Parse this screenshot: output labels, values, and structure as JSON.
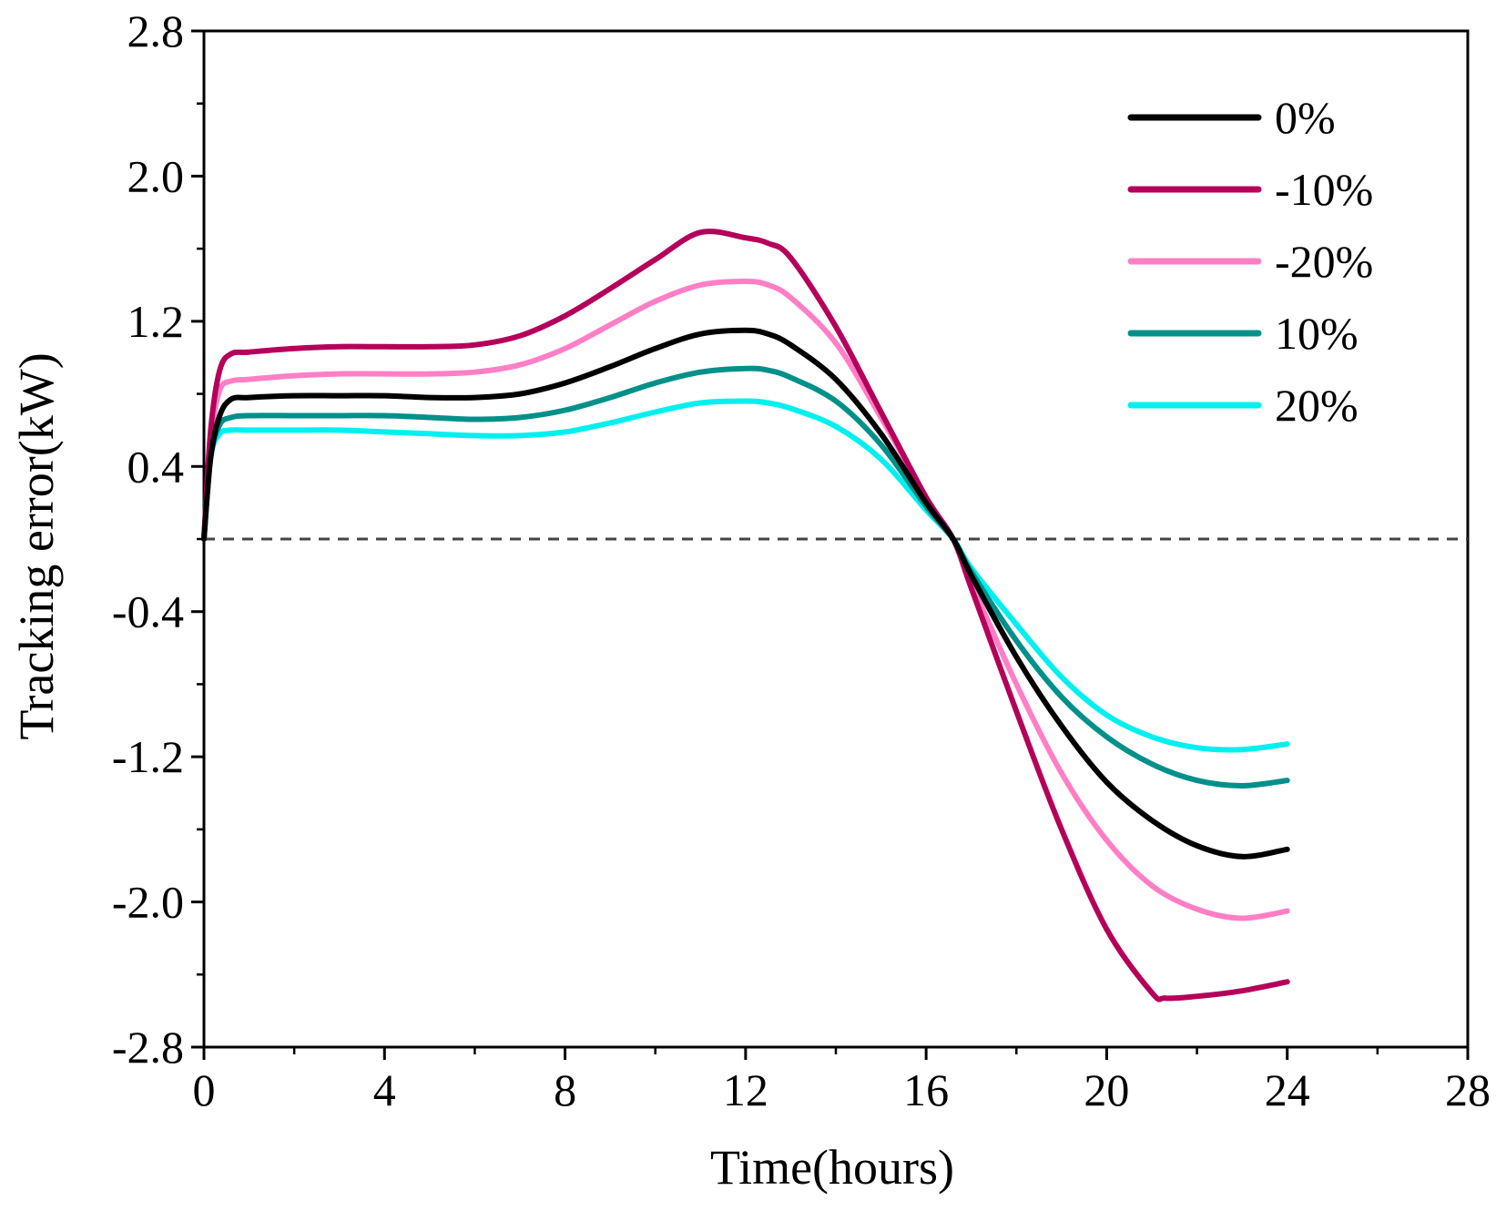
{
  "chart_data": {
    "type": "line",
    "title": "",
    "xlabel": "Time(hours)",
    "ylabel": "Tracking error(kW)",
    "xlim": [
      0,
      28
    ],
    "ylim": [
      -2.8,
      2.8
    ],
    "xticks": [
      0,
      4,
      8,
      12,
      16,
      20,
      24,
      28
    ],
    "yticks": [
      -2.8,
      -2.0,
      -1.2,
      -0.4,
      0.4,
      1.2,
      2.0,
      2.8
    ],
    "xtick_labels": [
      "0",
      "4",
      "8",
      "12",
      "16",
      "20",
      "24",
      "28"
    ],
    "ytick_labels": [
      "-2.8",
      "-2.0",
      "-1.2",
      "-0.4",
      "0.4",
      "1.2",
      "2.0",
      "2.8"
    ],
    "reference_line": {
      "y": 0,
      "style": "dashed",
      "color": "#444444"
    },
    "legend_position": "top-right",
    "series": [
      {
        "name": "0%",
        "color": "#000000",
        "x": [
          0,
          0.15,
          0.35,
          0.6,
          1,
          2,
          3,
          4,
          5,
          6,
          7,
          8,
          9,
          10,
          11,
          12,
          12.5,
          13,
          14,
          15,
          16,
          16.6,
          17,
          18,
          19,
          20,
          21,
          22,
          23,
          24
        ],
        "y": [
          0,
          0.45,
          0.68,
          0.77,
          0.78,
          0.79,
          0.79,
          0.79,
          0.78,
          0.78,
          0.8,
          0.86,
          0.95,
          1.05,
          1.13,
          1.15,
          1.13,
          1.07,
          0.88,
          0.58,
          0.2,
          0,
          -0.2,
          -0.65,
          -1.03,
          -1.34,
          -1.55,
          -1.69,
          -1.75,
          -1.71
        ]
      },
      {
        "name": "-10%",
        "color": "#B5005B",
        "x": [
          0,
          0.15,
          0.35,
          0.6,
          1,
          2,
          3,
          4,
          5,
          6,
          7,
          8,
          9,
          10,
          11,
          12,
          12.5,
          13,
          14,
          15,
          16,
          16.6,
          17,
          18,
          19,
          20,
          21,
          21.3,
          22,
          23,
          24
        ],
        "y": [
          0,
          0.6,
          0.93,
          1.02,
          1.03,
          1.05,
          1.06,
          1.06,
          1.06,
          1.07,
          1.12,
          1.23,
          1.38,
          1.54,
          1.69,
          1.66,
          1.63,
          1.55,
          1.17,
          0.7,
          0.23,
          0,
          -0.27,
          -0.95,
          -1.6,
          -2.15,
          -2.5,
          -2.53,
          -2.52,
          -2.49,
          -2.44
        ]
      },
      {
        "name": "-20%",
        "color": "#FF7FC6",
        "x": [
          0,
          0.15,
          0.35,
          0.6,
          1,
          2,
          3,
          4,
          5,
          6,
          7,
          8,
          9,
          10,
          11,
          12,
          12.5,
          13,
          14,
          15,
          16,
          16.6,
          17,
          18,
          19,
          20,
          21,
          22,
          23,
          24
        ],
        "y": [
          0,
          0.55,
          0.82,
          0.87,
          0.88,
          0.9,
          0.91,
          0.91,
          0.91,
          0.92,
          0.96,
          1.05,
          1.18,
          1.31,
          1.4,
          1.42,
          1.4,
          1.33,
          1.08,
          0.67,
          0.23,
          0,
          -0.24,
          -0.8,
          -1.29,
          -1.66,
          -1.91,
          -2.04,
          -2.09,
          -2.05
        ]
      },
      {
        "name": "10%",
        "color": "#00908A",
        "x": [
          0,
          0.15,
          0.35,
          0.6,
          1,
          2,
          3,
          4,
          5,
          6,
          7,
          8,
          9,
          10,
          11,
          12,
          12.5,
          13,
          14,
          15,
          16,
          16.6,
          17,
          18,
          19,
          20,
          21,
          22,
          23,
          24
        ],
        "y": [
          0,
          0.45,
          0.63,
          0.67,
          0.68,
          0.68,
          0.68,
          0.68,
          0.67,
          0.66,
          0.67,
          0.71,
          0.78,
          0.86,
          0.92,
          0.94,
          0.93,
          0.89,
          0.76,
          0.52,
          0.18,
          0,
          -0.18,
          -0.56,
          -0.87,
          -1.09,
          -1.24,
          -1.33,
          -1.36,
          -1.33
        ]
      },
      {
        "name": "20%",
        "color": "#00F0F0",
        "x": [
          0,
          0.15,
          0.35,
          0.6,
          1,
          2,
          3,
          4,
          5,
          6,
          7,
          8,
          9,
          10,
          11,
          12,
          12.5,
          13,
          14,
          15,
          16,
          16.6,
          17,
          18,
          19,
          20,
          21,
          22,
          23,
          24
        ],
        "y": [
          0,
          0.45,
          0.58,
          0.6,
          0.6,
          0.6,
          0.6,
          0.59,
          0.58,
          0.57,
          0.57,
          0.59,
          0.64,
          0.7,
          0.75,
          0.76,
          0.75,
          0.72,
          0.62,
          0.44,
          0.16,
          0,
          -0.16,
          -0.47,
          -0.76,
          -0.97,
          -1.09,
          -1.15,
          -1.16,
          -1.13
        ]
      }
    ]
  }
}
